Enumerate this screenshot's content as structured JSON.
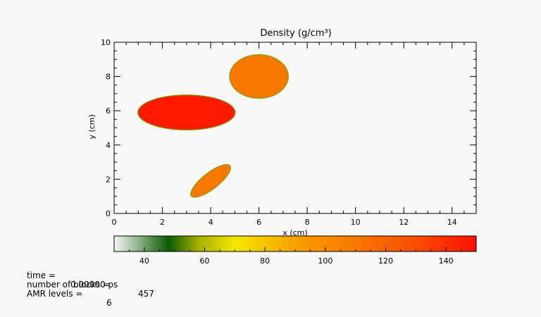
{
  "chart_data": {
    "type": "heatmap",
    "title": "Density (g/cm³)",
    "xlabel": "x (cm)",
    "ylabel": "y (cm)",
    "xlim": [
      0,
      15
    ],
    "ylim": [
      0,
      10
    ],
    "x_ticks": [
      "0",
      "2",
      "4",
      "6",
      "8",
      "10",
      "12",
      "14"
    ],
    "y_ticks": [
      "0",
      "2",
      "4",
      "6",
      "8",
      "10"
    ],
    "background_value": 30,
    "regions": [
      {
        "shape": "ellipse",
        "cx": 3.0,
        "cy": 5.9,
        "rx": 2.0,
        "ry": 1.0,
        "angle_deg": 0,
        "value": 150,
        "color": "#ff1a00"
      },
      {
        "shape": "ellipse",
        "cx": 6.0,
        "cy": 8.0,
        "rx": 1.2,
        "ry": 1.25,
        "angle_deg": 0,
        "value": 115,
        "color": "#f87800"
      },
      {
        "shape": "ellipse",
        "cx": 4.0,
        "cy": 1.9,
        "rx": 1.0,
        "ry": 0.45,
        "angle_deg": 38,
        "value": 115,
        "color": "#f87800"
      }
    ],
    "colorbar": {
      "min": 30,
      "max": 150,
      "ticks": [
        "40",
        "60",
        "80",
        "100",
        "120",
        "140"
      ],
      "stops": [
        {
          "value": 30,
          "color": "#f8f8f8"
        },
        {
          "value": 48,
          "color": "#0a5a00"
        },
        {
          "value": 58,
          "color": "#a8b000"
        },
        {
          "value": 70,
          "color": "#f4e800"
        },
        {
          "value": 90,
          "color": "#f8a000"
        },
        {
          "value": 110,
          "color": "#f87800"
        },
        {
          "value": 130,
          "color": "#f84e00"
        },
        {
          "value": 150,
          "color": "#ff1000"
        }
      ]
    }
  },
  "info": {
    "time_label": "time =",
    "time_value": "0.00000 ps",
    "blocks_label": "number of blocks =",
    "blocks_value": "457",
    "amr_label": "AMR levels =",
    "amr_value": "6"
  }
}
